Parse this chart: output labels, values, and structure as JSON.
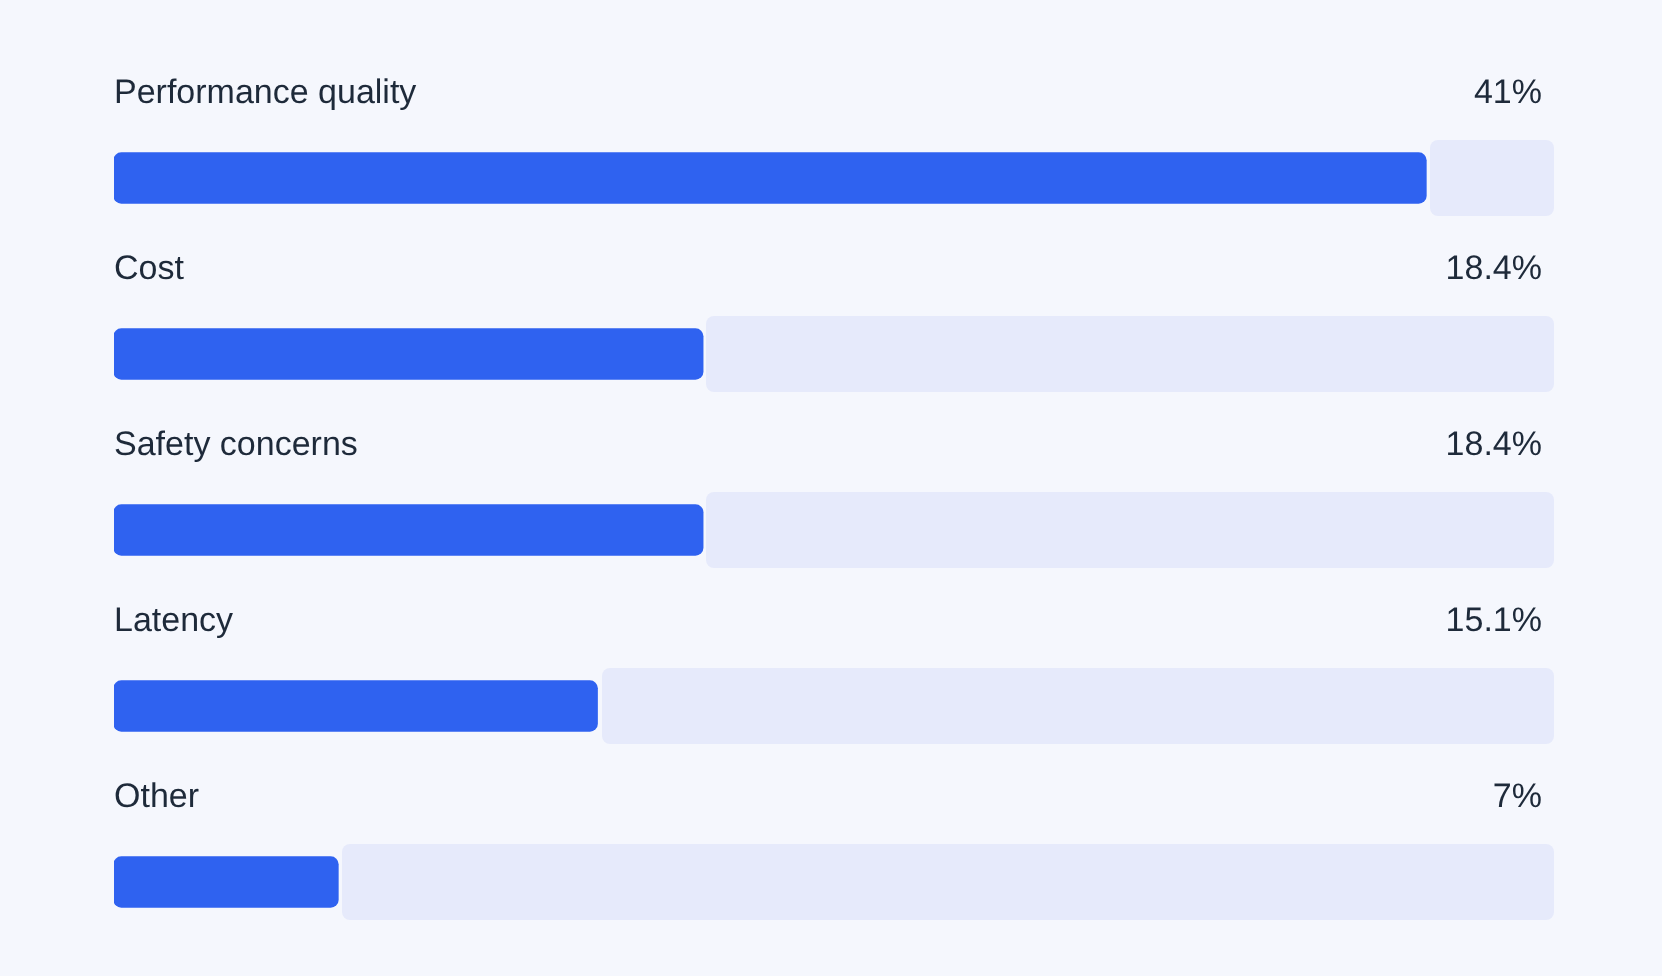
{
  "chart_data": {
    "type": "bar",
    "orientation": "horizontal",
    "categories": [
      "Performance quality",
      "Cost",
      "Safety concerns",
      "Latency",
      "Other"
    ],
    "values": [
      41,
      18.4,
      18.4,
      15.1,
      7
    ],
    "value_labels": [
      "41%",
      "18.4%",
      "18.4%",
      "15.1%",
      "7%"
    ],
    "color": "#2f62f0",
    "tick_labels": false,
    "legend": false
  }
}
